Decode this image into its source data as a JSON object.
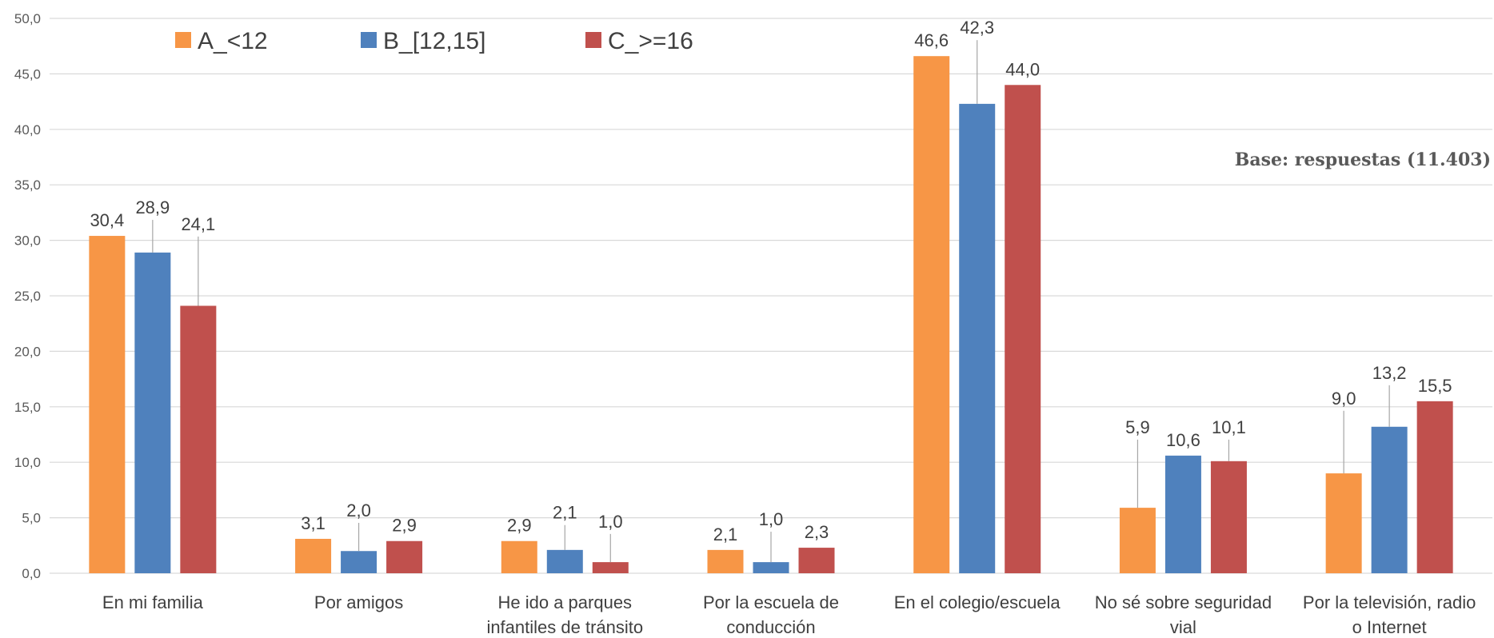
{
  "chart_data": {
    "type": "bar",
    "title": "",
    "xlabel": "",
    "ylabel": "",
    "ylim": [
      0,
      50
    ],
    "yticks": [
      "0,0",
      "5,0",
      "10,0",
      "15,0",
      "20,0",
      "25,0",
      "30,0",
      "35,0",
      "40,0",
      "45,0",
      "50,0"
    ],
    "grid": true,
    "legend_position": "top-left",
    "categories": [
      [
        "En mi familia"
      ],
      [
        "Por amigos"
      ],
      [
        "He ido a parques",
        "infantiles de tránsito"
      ],
      [
        "Por la escuela de",
        "conducción"
      ],
      [
        "En el colegio/escuela"
      ],
      [
        "No sé sobre seguridad",
        "vial"
      ],
      [
        "Por la televisión, radio",
        "o Internet"
      ]
    ],
    "series": [
      {
        "name": "A_<12",
        "color": "#F79646",
        "values": [
          30.4,
          3.1,
          2.9,
          2.1,
          46.6,
          5.9,
          9.0
        ],
        "labels": [
          "30,4",
          "3,1",
          "2,9",
          "2,1",
          "46,6",
          "5,9",
          "9,0"
        ]
      },
      {
        "name": "B_[12,15]",
        "color": "#4F81BD",
        "values": [
          28.9,
          2.0,
          2.1,
          1.0,
          42.3,
          10.6,
          13.2
        ],
        "labels": [
          "28,9",
          "2,0",
          "2,1",
          "1,0",
          "42,3",
          "10,6",
          "13,2"
        ]
      },
      {
        "name": "C_>=16",
        "color": "#C0504D",
        "values": [
          24.1,
          2.9,
          1.0,
          2.3,
          44.0,
          10.1,
          15.5
        ],
        "labels": [
          "24,1",
          "2,9",
          "1,0",
          "2,3",
          "44,0",
          "10,1",
          "15,5"
        ]
      }
    ],
    "annotation": "Base: respuestas (11.403)"
  }
}
